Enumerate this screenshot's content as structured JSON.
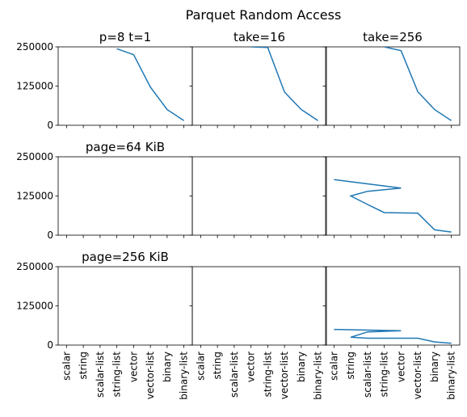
{
  "figure": {
    "title": "Parquet Random Access"
  },
  "chart_data": {
    "type": "line",
    "layout": "3x3 grid, shared axes",
    "ylim": [
      0,
      250000
    ],
    "yticks": [
      "0",
      "125000",
      "250000"
    ],
    "grid": false,
    "line_color": "#1f77b4",
    "panels": [
      {
        "row": 0,
        "col": 0,
        "title": "p=8 t=1",
        "x": [
          "scalar",
          "string",
          "scalar-list",
          "string-list",
          "vector",
          "vector-list",
          "binary",
          "binary-list"
        ],
        "values": [
          null,
          null,
          null,
          244000,
          225000,
          122000,
          50000,
          15000
        ]
      },
      {
        "row": 0,
        "col": 1,
        "title": "take=16",
        "x": [
          "scalar",
          "string",
          "scalar-list",
          "vector",
          "string-list",
          "vector-list",
          "binary",
          "binary-list"
        ],
        "values": [
          null,
          null,
          null,
          250000,
          248000,
          106000,
          50000,
          15000
        ]
      },
      {
        "row": 0,
        "col": 2,
        "title": "take=256",
        "x": [
          "scalar",
          "string",
          "scalar-list",
          "string-list",
          "vector",
          "vector-list",
          "binary",
          "binary-list"
        ],
        "values": [
          null,
          null,
          null,
          250000,
          238000,
          107000,
          50000,
          15000
        ]
      },
      {
        "row": 1,
        "col": 0,
        "title": "page=64 KiB",
        "x": [
          "scalar",
          "string",
          "scalar-list",
          "string-list",
          "vector",
          "vector-list",
          "binary",
          "binary-list"
        ],
        "values": []
      },
      {
        "row": 1,
        "col": 1,
        "title": "",
        "x": [
          "scalar",
          "string",
          "scalar-list",
          "vector",
          "string-list",
          "vector-list",
          "binary",
          "binary-list"
        ],
        "values": []
      },
      {
        "row": 1,
        "col": 2,
        "title": "",
        "x": [
          "scalar",
          "string",
          "scalar-list",
          "string-list",
          "vector",
          "vector-list",
          "binary",
          "binary-list"
        ],
        "points": [
          [
            "scalar",
            177000
          ],
          [
            "vector",
            150000
          ],
          [
            "scalar-list",
            140000
          ],
          [
            "string",
            125000
          ],
          [
            "scalar-list",
            98000
          ],
          [
            "string-list",
            72000
          ],
          [
            "vector-list",
            70000
          ],
          [
            "binary",
            17000
          ],
          [
            "binary-list",
            10000
          ]
        ]
      },
      {
        "row": 2,
        "col": 0,
        "title": "page=256 KiB",
        "x": [
          "scalar",
          "string",
          "scalar-list",
          "string-list",
          "vector",
          "vector-list",
          "binary",
          "binary-list"
        ],
        "values": []
      },
      {
        "row": 2,
        "col": 1,
        "title": "",
        "x": [
          "scalar",
          "string",
          "scalar-list",
          "vector",
          "string-list",
          "vector-list",
          "binary",
          "binary-list"
        ],
        "values": []
      },
      {
        "row": 2,
        "col": 2,
        "title": "",
        "x": [
          "scalar",
          "string",
          "scalar-list",
          "string-list",
          "vector",
          "vector-list",
          "binary",
          "binary-list"
        ],
        "points": [
          [
            "scalar",
            50000
          ],
          [
            "vector",
            46000
          ],
          [
            "scalar-list",
            42000
          ],
          [
            "string",
            25000
          ],
          [
            "scalar-list",
            22000
          ],
          [
            "vector-list",
            22000
          ],
          [
            "binary",
            10000
          ],
          [
            "binary-list",
            6000
          ]
        ]
      }
    ]
  }
}
